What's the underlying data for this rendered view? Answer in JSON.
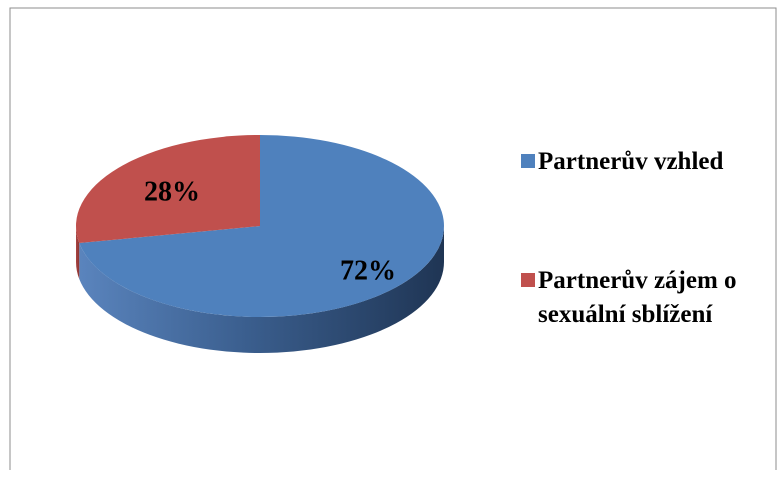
{
  "chart_data": {
    "type": "pie",
    "categories": [
      "Partnerův vzhled",
      "Partnerův zájem o sexuální sblížení"
    ],
    "values": [
      72,
      28
    ],
    "value_labels": [
      "72%",
      "28%"
    ],
    "colors": [
      "#4f81bd",
      "#c0504d"
    ],
    "legend": "right"
  }
}
